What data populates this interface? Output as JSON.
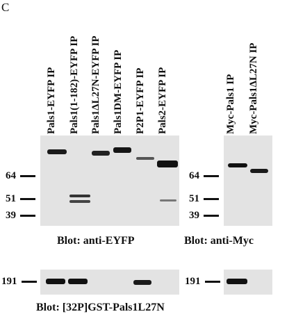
{
  "panel_letter": "C",
  "lane_labels_left": [
    "Pals1-EYFP IP",
    "Pals1(1-182)-EYFP IP",
    "Pals1ΔL27N-EYFP IP",
    "Pals1DM-EYFP IP",
    "P2P1-EYFP IP",
    "Pals2-EYFP IP"
  ],
  "lane_labels_right": [
    "Myc-Pals1 IP",
    "Myc-Pals1ΔL27N IP"
  ],
  "markers_left": [
    "64",
    "51",
    "39"
  ],
  "markers_right": [
    "64",
    "51",
    "39"
  ],
  "marker_bottom_left": "191",
  "marker_bottom_right": "191",
  "caption_left": "Blot:  anti-EYFP",
  "caption_right": "Blot:  anti-Myc",
  "caption_bottom": "Blot:  [32P]GST-Pals1L27N"
}
